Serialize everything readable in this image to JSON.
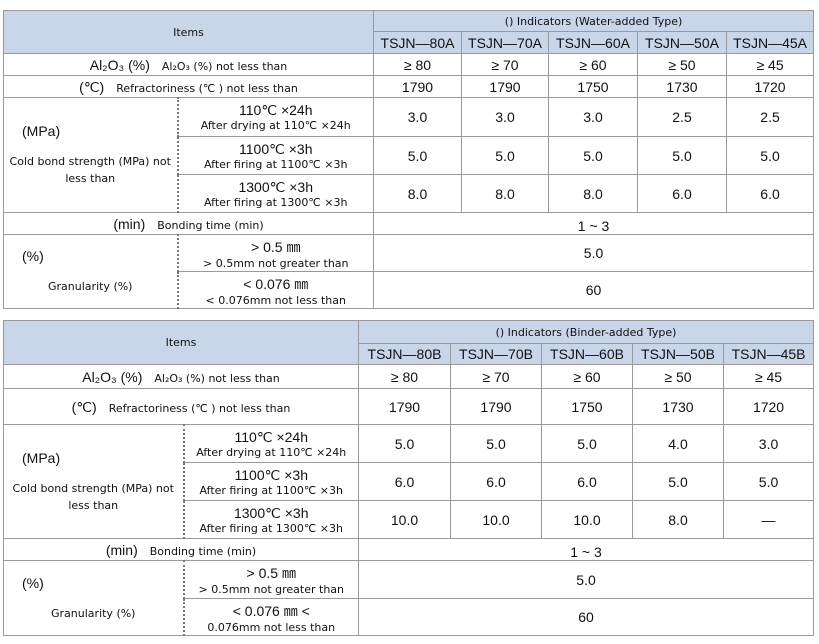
{
  "tables": [
    {
      "items_header": "Items",
      "indicators_header": "() Indicators (Water-added Type)",
      "grades": [
        "TSJN—80A",
        "TSJN—70A",
        "TSJN—60A",
        "TSJN—50A",
        "TSJN—45A"
      ],
      "rows": [
        {
          "unit": "Al₂O₃ (%)",
          "label": "Al₂O₃ (%) not less than",
          "values": [
            "≥ 80",
            "≥ 70",
            "≥ 60",
            "≥ 50",
            "≥ 45"
          ]
        },
        {
          "unit": "(℃)",
          "label": "Refractoriness (℃ ) not less than",
          "values": [
            "1790",
            "1790",
            "1750",
            "1730",
            "1720"
          ]
        }
      ],
      "strength": {
        "unit": "(MPa)",
        "label": "Cold bond strength (MPa) not less than",
        "conditions": [
          {
            "condition": "110℃ ×24h",
            "description": "After drying at 110℃ ×24h",
            "values": [
              "3.0",
              "3.0",
              "3.0",
              "2.5",
              "2.5"
            ]
          },
          {
            "condition": "1100℃ ×3h",
            "description": "After firing at 1100℃ ×3h",
            "values": [
              "5.0",
              "5.0",
              "5.0",
              "5.0",
              "5.0"
            ]
          },
          {
            "condition": "1300℃ ×3h",
            "description": "After firing at 1300℃ ×3h",
            "values": [
              "8.0",
              "8.0",
              "8.0",
              "6.0",
              "6.0"
            ]
          }
        ]
      },
      "bonding_time": {
        "unit": "(min)",
        "label": "Bonding time (min)",
        "value": "1 ~ 3"
      },
      "granularity": {
        "unit": "(%)",
        "label": "Granularity (%)",
        "fractions": [
          {
            "size": "> 0.5 ㎜",
            "description": "> 0.5mm not greater than",
            "value": "5.0"
          },
          {
            "size": "< 0.076 ㎜",
            "description": "< 0.076mm not less than",
            "value": "60"
          }
        ]
      }
    },
    {
      "items_header": "Items",
      "indicators_header": "() Indicators (Binder-added Type)",
      "grades": [
        "TSJN—80B",
        "TSJN—70B",
        "TSJN—60B",
        "TSJN—50B",
        "TSJN—45B"
      ],
      "rows": [
        {
          "unit": "Al₂O₃ (%)",
          "label": "Al₂O₃ (%) not less than",
          "values": [
            "≥ 80",
            "≥ 70",
            "≥ 60",
            "≥ 50",
            "≥ 45"
          ]
        },
        {
          "unit": "(℃)",
          "label": "Refractoriness (℃ ) not less than",
          "values": [
            "1790",
            "1790",
            "1750",
            "1730",
            "1720"
          ]
        }
      ],
      "strength": {
        "unit": "(MPa)",
        "label": "Cold bond strength (MPa) not less than",
        "conditions": [
          {
            "condition": "110℃ ×24h",
            "description": "After drying at 110℃ ×24h",
            "values": [
              "5.0",
              "5.0",
              "5.0",
              "4.0",
              "3.0"
            ]
          },
          {
            "condition": "1100℃ ×3h",
            "description": "After firing at 1100℃ ×3h",
            "values": [
              "6.0",
              "6.0",
              "6.0",
              "5.0",
              "5.0"
            ]
          },
          {
            "condition": "1300℃ ×3h",
            "description": "After firing at 1300℃ ×3h",
            "values": [
              "10.0",
              "10.0",
              "10.0",
              "8.0",
              "—"
            ]
          }
        ]
      },
      "bonding_time": {
        "unit": "(min)",
        "label": "Bonding time (min)",
        "value": "1 ~ 3"
      },
      "granularity": {
        "unit": "(%)",
        "label": "Granularity (%)",
        "fractions": [
          {
            "size": "> 0.5 ㎜",
            "description": "> 0.5mm not greater than",
            "value": "5.0"
          },
          {
            "size": "< 0.076 ㎜  <",
            "description": "0.076mm not less than",
            "value": "60"
          }
        ]
      }
    }
  ]
}
